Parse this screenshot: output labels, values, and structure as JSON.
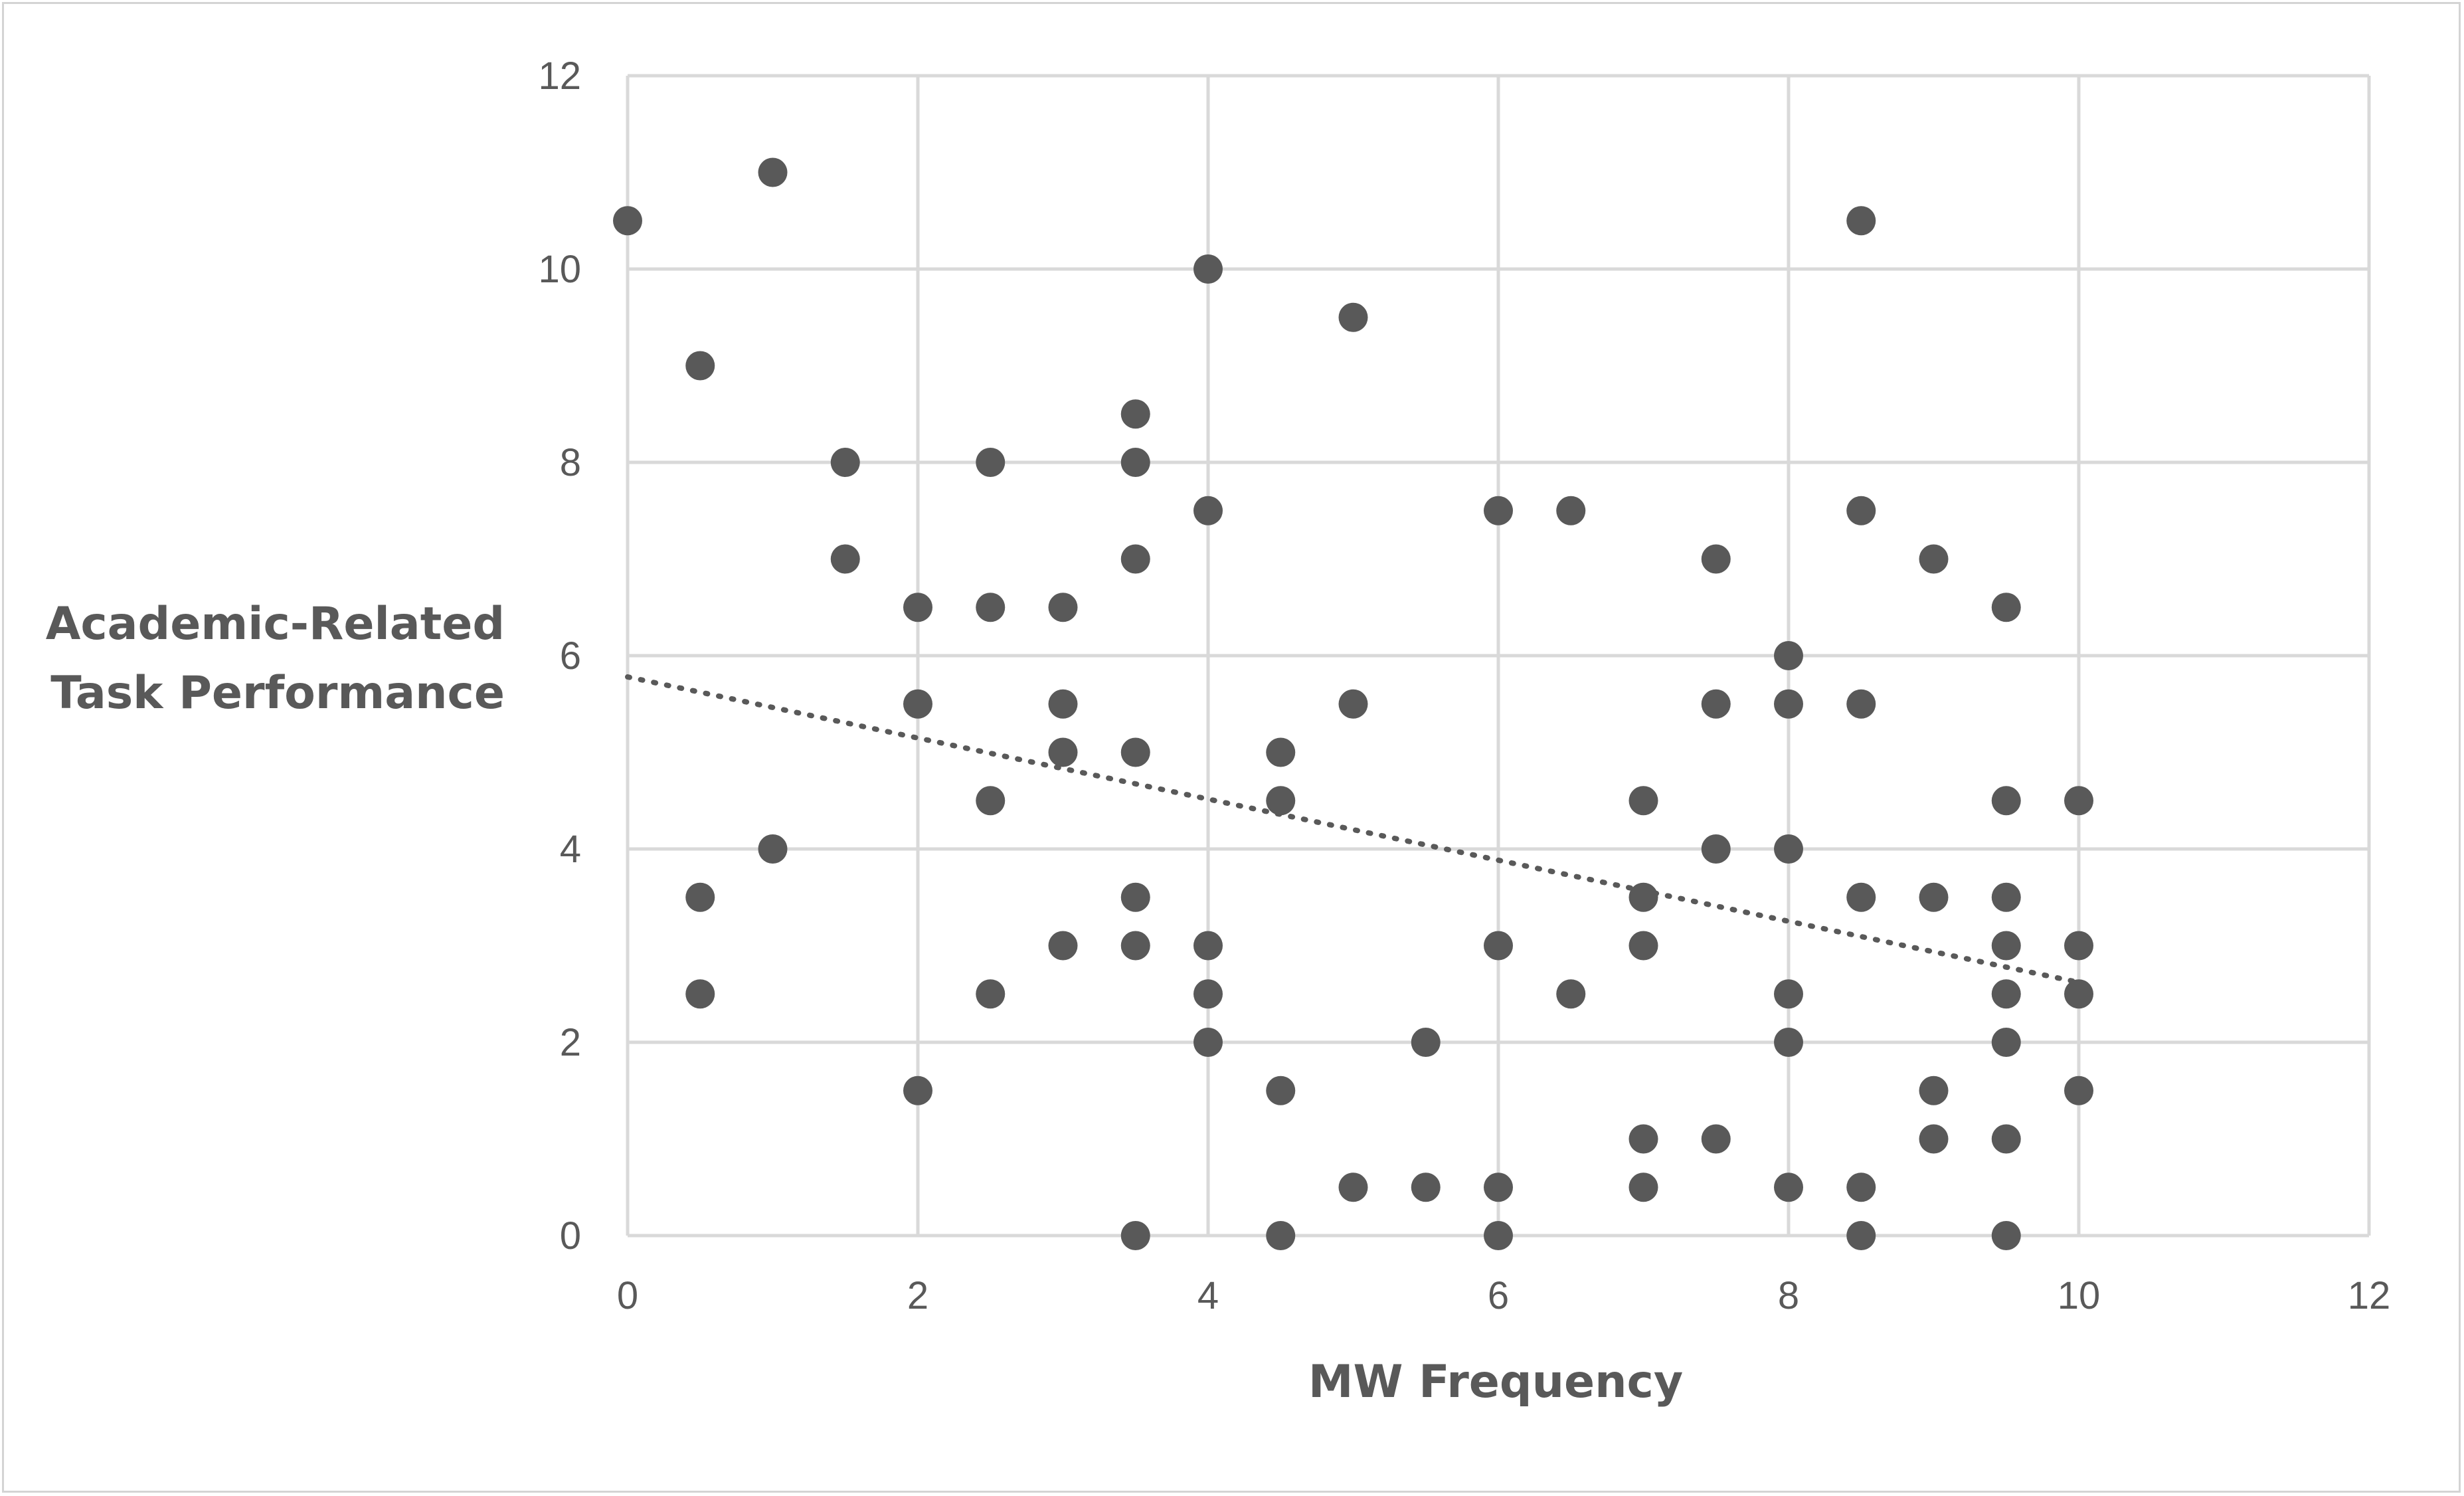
{
  "chart_data": {
    "type": "scatter",
    "title": "",
    "xlabel": "MW Frequency",
    "ylabel_lines": [
      "Academic-Related",
      "Task Performance"
    ],
    "xlim": [
      0,
      12
    ],
    "ylim": [
      0,
      12
    ],
    "x_ticks": [
      0,
      2,
      4,
      6,
      8,
      10,
      12
    ],
    "y_ticks": [
      0,
      2,
      4,
      6,
      8,
      10,
      12
    ],
    "grid": true,
    "legend": "none",
    "marker_color": "#595959",
    "trendline": {
      "type": "linear",
      "style": "dotted",
      "x": [
        0,
        10
      ],
      "y": [
        5.78,
        2.62
      ]
    },
    "points": [
      {
        "x": 0,
        "y": 10.5
      },
      {
        "x": 0.5,
        "y": 9
      },
      {
        "x": 0.5,
        "y": 3.5
      },
      {
        "x": 0.5,
        "y": 2.5
      },
      {
        "x": 1,
        "y": 11
      },
      {
        "x": 1,
        "y": 4
      },
      {
        "x": 1.5,
        "y": 8
      },
      {
        "x": 1.5,
        "y": 7
      },
      {
        "x": 2,
        "y": 6.5
      },
      {
        "x": 2,
        "y": 5.5
      },
      {
        "x": 2,
        "y": 1.5
      },
      {
        "x": 2.5,
        "y": 8
      },
      {
        "x": 2.5,
        "y": 6.5
      },
      {
        "x": 2.5,
        "y": 4.5
      },
      {
        "x": 2.5,
        "y": 2.5
      },
      {
        "x": 3,
        "y": 6.5
      },
      {
        "x": 3,
        "y": 5.5
      },
      {
        "x": 3,
        "y": 5
      },
      {
        "x": 3,
        "y": 3
      },
      {
        "x": 3.5,
        "y": 8.5
      },
      {
        "x": 3.5,
        "y": 8
      },
      {
        "x": 3.5,
        "y": 7
      },
      {
        "x": 3.5,
        "y": 5
      },
      {
        "x": 3.5,
        "y": 3.5
      },
      {
        "x": 3.5,
        "y": 3
      },
      {
        "x": 3.5,
        "y": 0
      },
      {
        "x": 4,
        "y": 10
      },
      {
        "x": 4,
        "y": 7.5
      },
      {
        "x": 4,
        "y": 3
      },
      {
        "x": 4,
        "y": 2.5
      },
      {
        "x": 4,
        "y": 2
      },
      {
        "x": 4.5,
        "y": 5
      },
      {
        "x": 4.5,
        "y": 4.5
      },
      {
        "x": 4.5,
        "y": 1.5
      },
      {
        "x": 4.5,
        "y": 0
      },
      {
        "x": 5,
        "y": 9.5
      },
      {
        "x": 5,
        "y": 5.5
      },
      {
        "x": 5,
        "y": 0.5
      },
      {
        "x": 5.5,
        "y": 2
      },
      {
        "x": 5.5,
        "y": 0.5
      },
      {
        "x": 6,
        "y": 7.5
      },
      {
        "x": 6,
        "y": 3
      },
      {
        "x": 6,
        "y": 0.5
      },
      {
        "x": 6,
        "y": 0
      },
      {
        "x": 6.5,
        "y": 7.5
      },
      {
        "x": 6.5,
        "y": 2.5
      },
      {
        "x": 7,
        "y": 4.5
      },
      {
        "x": 7,
        "y": 3.5
      },
      {
        "x": 7,
        "y": 3
      },
      {
        "x": 7,
        "y": 1
      },
      {
        "x": 7,
        "y": 0.5
      },
      {
        "x": 7.5,
        "y": 7
      },
      {
        "x": 7.5,
        "y": 5.5
      },
      {
        "x": 7.5,
        "y": 4
      },
      {
        "x": 7.5,
        "y": 1
      },
      {
        "x": 8,
        "y": 6
      },
      {
        "x": 8,
        "y": 5.5
      },
      {
        "x": 8,
        "y": 4
      },
      {
        "x": 8,
        "y": 2.5
      },
      {
        "x": 8,
        "y": 2
      },
      {
        "x": 8,
        "y": 0.5
      },
      {
        "x": 8.5,
        "y": 10.5
      },
      {
        "x": 8.5,
        "y": 7.5
      },
      {
        "x": 8.5,
        "y": 5.5
      },
      {
        "x": 8.5,
        "y": 3.5
      },
      {
        "x": 8.5,
        "y": 0.5
      },
      {
        "x": 8.5,
        "y": 0
      },
      {
        "x": 9,
        "y": 7
      },
      {
        "x": 9,
        "y": 3.5
      },
      {
        "x": 9,
        "y": 1.5
      },
      {
        "x": 9,
        "y": 1
      },
      {
        "x": 9.5,
        "y": 6.5
      },
      {
        "x": 9.5,
        "y": 4.5
      },
      {
        "x": 9.5,
        "y": 3.5
      },
      {
        "x": 9.5,
        "y": 3
      },
      {
        "x": 9.5,
        "y": 2.5
      },
      {
        "x": 9.5,
        "y": 2
      },
      {
        "x": 9.5,
        "y": 1
      },
      {
        "x": 9.5,
        "y": 0
      },
      {
        "x": 10,
        "y": 4.5
      },
      {
        "x": 10,
        "y": 3
      },
      {
        "x": 10,
        "y": 2.5
      },
      {
        "x": 10,
        "y": 1.5
      }
    ]
  }
}
